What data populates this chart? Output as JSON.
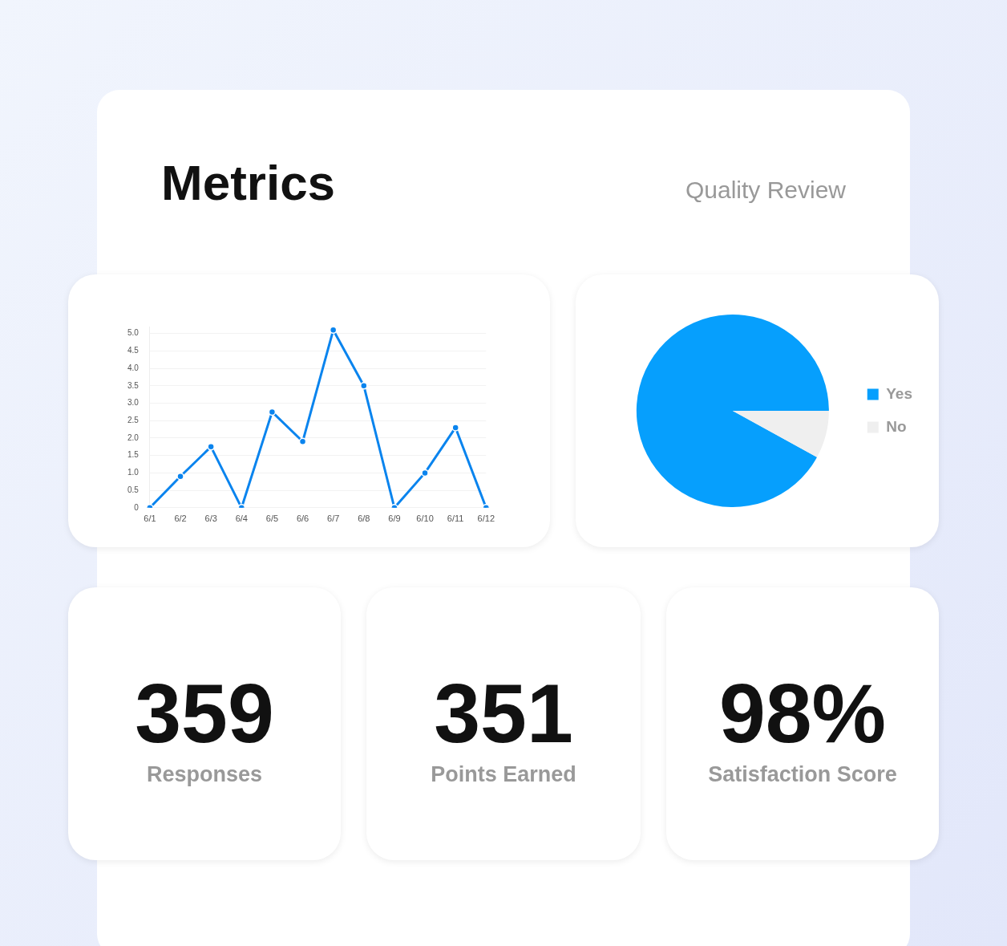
{
  "chart_data": [
    {
      "type": "other",
      "title": "Metrics",
      "subtitle": "Quality Review"
    },
    {
      "type": "line",
      "categories": [
        "6/1",
        "6/2",
        "6/3",
        "6/4",
        "6/5",
        "6/6",
        "6/7",
        "6/8",
        "6/9",
        "6/10",
        "6/11",
        "6/12"
      ],
      "values": [
        0,
        0.9,
        1.75,
        0,
        2.75,
        1.9,
        5.1,
        3.5,
        0,
        1,
        2.3,
        0
      ],
      "color": "#0a84ee",
      "ylim": [
        0,
        5.2
      ],
      "yticks": [
        {
          "value": 0,
          "label": "0"
        },
        0.5,
        {
          "value": 1,
          "label": "1.0"
        },
        1.5,
        {
          "value": 2,
          "label": "2.0"
        },
        2.5,
        {
          "value": 3,
          "label": "3.0"
        },
        3.5,
        {
          "value": 4,
          "label": "4.0"
        },
        4.5,
        {
          "value": 5,
          "label": "5.0"
        }
      ],
      "grid": "y",
      "marker": "circle",
      "line_style": "solid",
      "legend": false
    },
    {
      "type": "pie",
      "categories": [
        "Yes",
        "No"
      ],
      "values": [
        92,
        8
      ],
      "colors": [
        "#069ffd",
        "#efefef"
      ],
      "legend": "right"
    },
    {
      "type": "other",
      "annotations": [
        "359",
        "Responses"
      ]
    },
    {
      "type": "other",
      "annotations": [
        "351",
        "Points Earned"
      ]
    },
    {
      "type": "other",
      "annotations": [
        "98%",
        "Satisfaction Score"
      ]
    }
  ]
}
